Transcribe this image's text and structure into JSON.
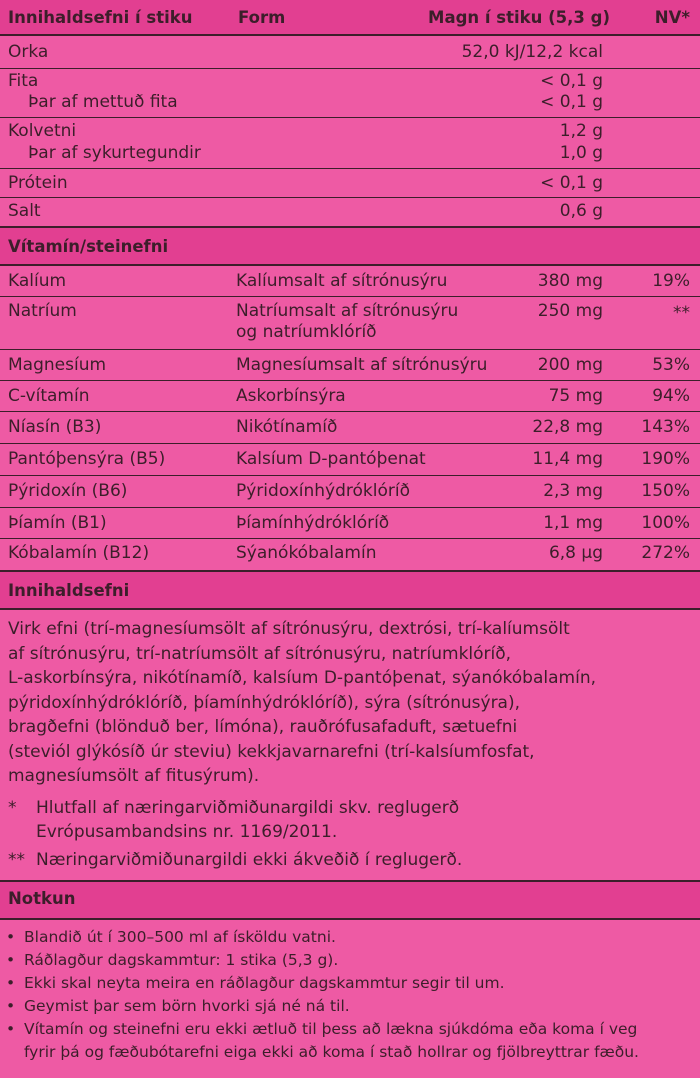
{
  "header": {
    "col_ingredient": "Innihaldsefni í stiku",
    "col_form": "Form",
    "col_amount": "Magn í stiku (5,3 g)",
    "col_nv": "NV*"
  },
  "nutrition": [
    {
      "name": "Orka",
      "amount": "52,0 kJ/12,2 kcal"
    },
    {
      "name": "Fita",
      "amount": "< 0,1 g"
    },
    {
      "name": "Þar af mettuð fita",
      "amount": "< 0,1 g"
    },
    {
      "name": "Kolvetni",
      "amount": "1,2 g"
    },
    {
      "name": "Þar af sykurtegundir",
      "amount": "1,0 g"
    },
    {
      "name": "Prótein",
      "amount": "< 0,1 g"
    },
    {
      "name": "Salt",
      "amount": "0,6 g"
    }
  ],
  "vitamins_heading": "Vítamín/steinefni",
  "vitamins": [
    {
      "name": "Kalíum",
      "form": "Kalíumsalt af sítrónusýru",
      "amount": "380 mg",
      "nv": "19%"
    },
    {
      "name": "Natríum",
      "form": "Natríumsalt af sítrónusýru",
      "form2": "og natríumklóríð",
      "amount": "250 mg",
      "nv": "**"
    },
    {
      "name": "Magnesíum",
      "form": "Magnesíumsalt af sítrónusýru",
      "amount": "200 mg",
      "nv": "53%"
    },
    {
      "name": "C-vítamín",
      "form": "Askorbínsýra",
      "amount": "75 mg",
      "nv": "94%"
    },
    {
      "name": "Níasín (B3)",
      "form": "Nikótínamíð",
      "amount": "22,8 mg",
      "nv": "143%"
    },
    {
      "name": "Pantóþensýra (B5)",
      "form": "Kalsíum D-pantóþenat",
      "amount": "11,4 mg",
      "nv": "190%"
    },
    {
      "name": "Pýridoxín (B6)",
      "form": "Pýridoxínhýdróklóríð",
      "amount": "2,3 mg",
      "nv": "150%"
    },
    {
      "name": "Þíamín (B1)",
      "form": "Þíamínhýdróklóríð",
      "amount": "1,1 mg",
      "nv": "100%"
    },
    {
      "name": "Kóbalamín (B12)",
      "form": "Sýanókóbalamín",
      "amount": "6,8 µg",
      "nv": "272%"
    }
  ],
  "ingredients_heading": "Innihaldsefni",
  "ingredients_text": "Virk efni (trí-magnesíumsölt af sítrónusýru, dextrósi, trí-kalíumsölt\naf sítrónusýru, trí-natríumsölt af sítrónusýru, natríumklóríð,\nL-askorbínsýra, nikótínamíð, kalsíum D-pantóþenat, sýanókóbalamín,\npýridoxínhýdróklóríð, þíamínhýdróklóríð), sýra (sítrónusýra),\nbragðefni (blönduð ber, límóna), rauðrófusafaduft, sætuefni\n(steviól glýkósíð úr steviu) kekkjavarnarefni (trí-kalsíumfosfat,\nmagnesíumsölt af fitusýrum).",
  "footnotes": [
    {
      "mark": "*",
      "text": "Hlutfall af næringarviðmiðunargildi skv. reglugerð\nEvrópusambandsins nr. 1169/2011."
    },
    {
      "mark": "**",
      "text": "Næringarviðmiðunargildi ekki ákveðið í reglugerð."
    }
  ],
  "usage_heading": "Notkun",
  "usage": [
    "Blandið út í 300–500 ml af ísköldu vatni.",
    "Ráðlagður dagskammtur: 1 stika (5,3 g).",
    "Ekki skal neyta meira en ráðlagður dagskammtur segir til um.",
    "Geymist þar sem börn hvorki sjá né ná til.",
    "Vítamín og steinefni eru ekki ætluð til þess að lækna sjúkdóma eða koma í veg\nfyrir þá og fæðubótarefni eiga ekki að koma í stað hollrar og fjölbreyttrar fæðu."
  ],
  "bullet_glyph": "•",
  "colors": {
    "background": "#ee5aa4",
    "header_band": "#e23f91",
    "text": "#3c1e2a"
  }
}
